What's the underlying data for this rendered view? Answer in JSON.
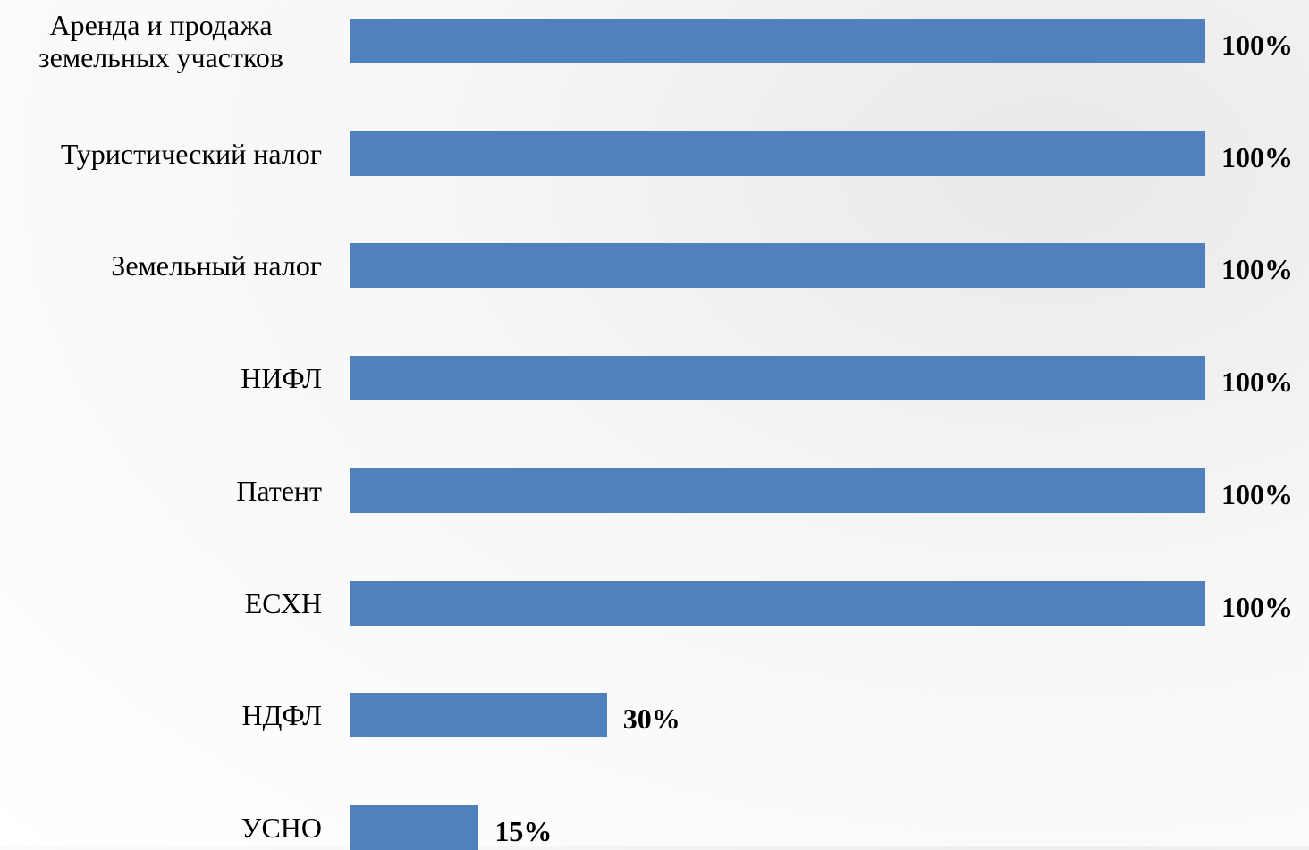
{
  "chart_data": {
    "type": "barh",
    "categories": [
      "Аренда и продажа земельных участков",
      "Туристический налог",
      "Земельный налог",
      "НИФЛ",
      "Патент",
      "ЕСХН",
      "НДФЛ",
      "УСНО"
    ],
    "values": [
      100,
      100,
      100,
      100,
      100,
      100,
      30,
      15
    ],
    "value_labels": [
      "100%",
      "100%",
      "100%",
      "100%",
      "100%",
      "100%",
      "30%",
      "15%"
    ],
    "color": "#4f81bd",
    "xlim": [
      0,
      100
    ]
  }
}
